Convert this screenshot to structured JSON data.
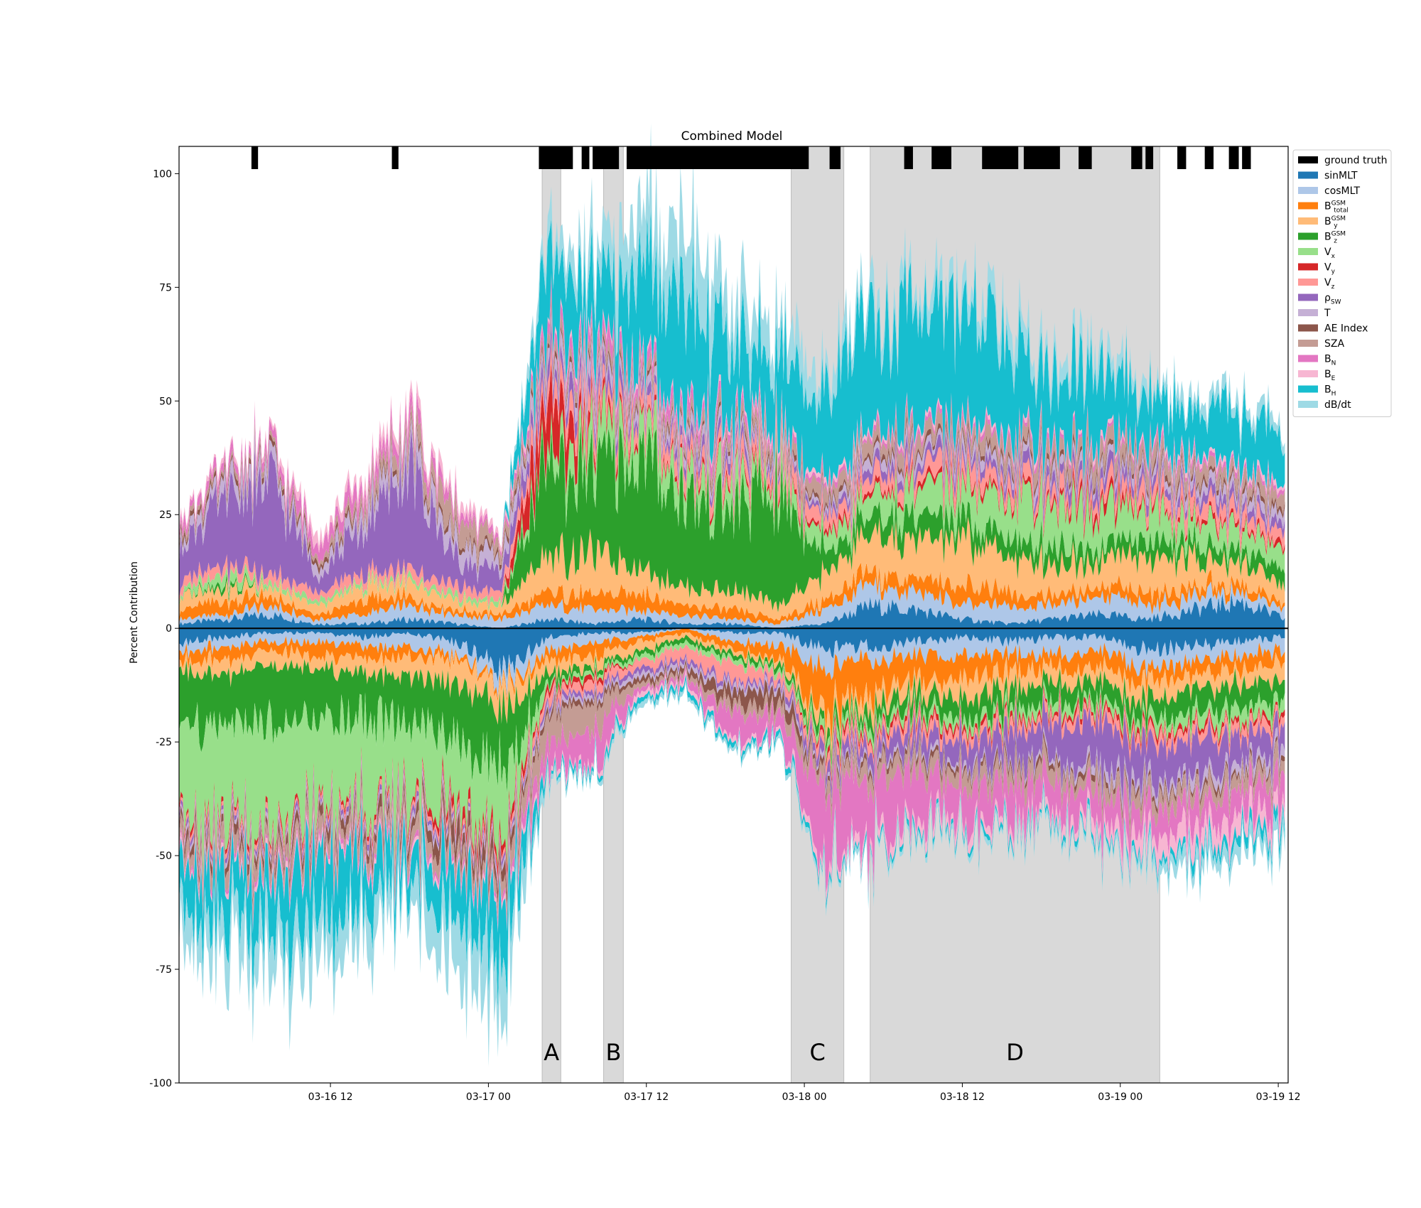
{
  "chart_data": {
    "type": "area",
    "title": "Combined Model",
    "xlabel": "",
    "ylabel": "Percent Contribution",
    "ylim": [
      -100,
      106
    ],
    "xlim": [
      "03-16 00:30",
      "03-19 12:45"
    ],
    "y_ticks": [
      -100,
      -75,
      -50,
      -25,
      0,
      25,
      50,
      75,
      100
    ],
    "x_ticks": [
      {
        "t": "2023-03-16T12:00",
        "label": "03-16 12"
      },
      {
        "t": "2023-03-17T00:00",
        "label": "03-17 00"
      },
      {
        "t": "2023-03-17T12:00",
        "label": "03-17 12"
      },
      {
        "t": "2023-03-18T00:00",
        "label": "03-18 00"
      },
      {
        "t": "2023-03-18T12:00",
        "label": "03-18 12"
      },
      {
        "t": "2023-03-19T00:00",
        "label": "03-19 00"
      },
      {
        "t": "2023-03-19T12:00",
        "label": "03-19 12"
      }
    ],
    "grid": false,
    "legend_position": "outside-right-top",
    "shaded_regions": [
      {
        "label": "A",
        "start": "2023-03-17T04:05",
        "end": "2023-03-17T05:30"
      },
      {
        "label": "B",
        "start": "2023-03-17T08:45",
        "end": "2023-03-17T10:15"
      },
      {
        "label": "C",
        "start": "2023-03-17T23:00",
        "end": "2023-03-18T03:00"
      },
      {
        "label": "D",
        "start": "2023-03-18T05:00",
        "end": "2023-03-19T03:00"
      }
    ],
    "ground_truth_events": [
      [
        "2023-03-16T06:00",
        "2023-03-16T06:30"
      ],
      [
        "2023-03-16T16:40",
        "2023-03-16T17:10"
      ],
      [
        "2023-03-17T03:50",
        "2023-03-17T06:25"
      ],
      [
        "2023-03-17T07:05",
        "2023-03-17T07:40"
      ],
      [
        "2023-03-17T07:55",
        "2023-03-17T09:55"
      ],
      [
        "2023-03-17T10:30",
        "2023-03-18T00:20"
      ],
      [
        "2023-03-18T01:55",
        "2023-03-18T02:45"
      ],
      [
        "2023-03-18T07:35",
        "2023-03-18T08:15"
      ],
      [
        "2023-03-18T09:40",
        "2023-03-18T11:10"
      ],
      [
        "2023-03-18T13:30",
        "2023-03-18T16:15"
      ],
      [
        "2023-03-18T16:40",
        "2023-03-18T19:25"
      ],
      [
        "2023-03-18T20:50",
        "2023-03-18T21:50"
      ],
      [
        "2023-03-19T00:50",
        "2023-03-19T01:40"
      ],
      [
        "2023-03-19T01:55",
        "2023-03-19T02:30"
      ],
      [
        "2023-03-19T04:20",
        "2023-03-19T05:00"
      ],
      [
        "2023-03-19T06:25",
        "2023-03-19T07:05"
      ],
      [
        "2023-03-19T08:15",
        "2023-03-19T09:00"
      ],
      [
        "2023-03-19T09:15",
        "2023-03-19T09:55"
      ]
    ],
    "x_samples": [
      "03-16 00:30",
      "03-16 04:00",
      "03-16 07:30",
      "03-16 11:00",
      "03-16 14:30",
      "03-16 18:00",
      "03-16 21:30",
      "03-17 01:00",
      "03-17 04:30",
      "03-17 08:00",
      "03-17 11:30",
      "03-17 15:00",
      "03-17 18:30",
      "03-17 22:00",
      "03-18 01:30",
      "03-18 05:00",
      "03-18 08:30",
      "03-18 12:00",
      "03-18 15:30",
      "03-18 19:00",
      "03-18 22:30",
      "03-19 02:00",
      "03-19 05:30",
      "03-19 09:00",
      "03-19 12:30"
    ],
    "series": [
      {
        "name": "sinMLT",
        "color": "#1f77b4",
        "positive": [
          1,
          2,
          3,
          1,
          1,
          2,
          1,
          0,
          2,
          1,
          2,
          1,
          1,
          0,
          1,
          5,
          4,
          2,
          1,
          2,
          3,
          2,
          4,
          6,
          2
        ],
        "negative": [
          -3,
          -2,
          -1,
          -1,
          -2,
          -1,
          -3,
          -10,
          -2,
          -1,
          -1,
          0,
          -1,
          -1,
          -5,
          -4,
          -3,
          -2,
          -3,
          -2,
          -2,
          -5,
          -4,
          -3,
          -2
        ]
      },
      {
        "name": "cosMLT",
        "color": "#aec7e8",
        "positive": [
          1,
          1,
          2,
          1,
          2,
          3,
          2,
          2,
          3,
          3,
          2,
          2,
          1,
          1,
          3,
          4,
          4,
          3,
          4,
          3,
          4,
          3,
          3,
          2,
          2
        ],
        "negative": [
          -2,
          -2,
          -2,
          -2,
          -2,
          -3,
          -3,
          -3,
          -3,
          -2,
          -1,
          0,
          -2,
          -3,
          -4,
          -3,
          -3,
          -4,
          -3,
          -4,
          -3,
          -4,
          -3,
          -3,
          -3
        ]
      },
      {
        "name": "B_total_GSM",
        "color": "#ff7f0e",
        "positive": [
          2,
          3,
          2,
          1,
          3,
          2,
          1,
          1,
          3,
          3,
          4,
          2,
          2,
          1,
          2,
          3,
          3,
          4,
          3,
          2,
          2,
          3,
          2,
          2,
          1
        ],
        "negative": [
          -2,
          -3,
          -2,
          -3,
          -3,
          -2,
          -1,
          -1,
          -2,
          -3,
          -1,
          -1,
          -2,
          -3,
          -10,
          -8,
          -6,
          -5,
          -4,
          -3,
          -4,
          -3,
          -3,
          -3,
          -3
        ]
      },
      {
        "name": "B_y_GSM",
        "color": "#ffbb78",
        "positive": [
          3,
          3,
          2,
          2,
          3,
          3,
          2,
          2,
          8,
          9,
          6,
          4,
          4,
          3,
          6,
          8,
          8,
          10,
          8,
          7,
          6,
          8,
          6,
          5,
          4
        ],
        "negative": [
          -2,
          -3,
          -3,
          -3,
          -3,
          -4,
          -5,
          -5,
          -3,
          -2,
          -2,
          -1,
          -1,
          -1,
          -3,
          -3,
          -3,
          -4,
          -4,
          -3,
          -3,
          -4,
          -3,
          -3,
          -4
        ]
      },
      {
        "name": "B_z_GSM",
        "color": "#2ca02c",
        "positive": [
          0,
          1,
          0,
          0,
          0,
          0,
          0,
          0,
          20,
          18,
          25,
          20,
          18,
          25,
          5,
          4,
          5,
          4,
          4,
          4,
          3,
          4,
          3,
          3,
          3
        ],
        "negative": [
          -12,
          -10,
          -12,
          -10,
          -10,
          -10,
          -12,
          -14,
          -2,
          -1,
          -1,
          -1,
          -1,
          -1,
          -2,
          -3,
          -3,
          -4,
          -4,
          -4,
          -4,
          -4,
          -5,
          -5,
          -5
        ]
      },
      {
        "name": "V_x",
        "color": "#98df8a",
        "positive": [
          1,
          2,
          1,
          1,
          1,
          1,
          1,
          1,
          3,
          8,
          6,
          5,
          5,
          4,
          4,
          5,
          6,
          7,
          9,
          10,
          9,
          7,
          5,
          5,
          4
        ],
        "negative": [
          -20,
          -22,
          -22,
          -20,
          -18,
          -20,
          -16,
          -14,
          -1,
          -1,
          -1,
          -1,
          -1,
          -1,
          -2,
          -2,
          -2,
          -2,
          -2,
          -2,
          -2,
          -2,
          -3,
          -3,
          -3
        ]
      },
      {
        "name": "V_y",
        "color": "#d62728",
        "positive": [
          0,
          0,
          0,
          0,
          0,
          0,
          0,
          0,
          12,
          2,
          1,
          1,
          1,
          1,
          1,
          1,
          1,
          1,
          1,
          1,
          2,
          1,
          1,
          1,
          1
        ],
        "negative": [
          -1,
          -1,
          -1,
          -1,
          -1,
          -1,
          -2,
          -2,
          -1,
          -1,
          0,
          0,
          0,
          0,
          -1,
          -1,
          -1,
          -1,
          -1,
          -1,
          -1,
          -1,
          -1,
          -1,
          -1
        ]
      },
      {
        "name": "V_z",
        "color": "#ff9896",
        "positive": [
          2,
          2,
          2,
          2,
          2,
          2,
          2,
          2,
          4,
          4,
          3,
          3,
          3,
          3,
          3,
          3,
          3,
          4,
          3,
          3,
          3,
          3,
          3,
          3,
          3
        ],
        "negative": [
          -1,
          -1,
          -1,
          -1,
          -1,
          -1,
          -1,
          -1,
          -2,
          -2,
          -2,
          -3,
          -4,
          -2,
          -2,
          -2,
          -2,
          -2,
          -2,
          -2,
          -2,
          -2,
          -2,
          -2,
          -2
        ]
      },
      {
        "name": "ρ_SW",
        "color": "#9467bd",
        "positive": [
          8,
          14,
          20,
          4,
          10,
          22,
          6,
          4,
          3,
          3,
          2,
          2,
          2,
          1,
          1,
          2,
          2,
          2,
          2,
          2,
          3,
          2,
          2,
          2,
          2
        ],
        "negative": [
          -1,
          -1,
          -1,
          -1,
          -1,
          -1,
          -1,
          -1,
          -1,
          -1,
          -1,
          -1,
          -1,
          -1,
          -2,
          -3,
          -4,
          -5,
          -6,
          -8,
          -10,
          -8,
          -8,
          -6,
          -6
        ]
      },
      {
        "name": "T",
        "color": "#c5b0d5",
        "positive": [
          2,
          3,
          3,
          2,
          3,
          4,
          4,
          3,
          3,
          3,
          2,
          2,
          2,
          1,
          1,
          2,
          2,
          2,
          2,
          2,
          2,
          2,
          2,
          2,
          2
        ],
        "negative": [
          -1,
          -1,
          -1,
          -1,
          -1,
          -1,
          -1,
          -1,
          -1,
          -1,
          -1,
          -1,
          -1,
          -1,
          -1,
          -1,
          -1,
          -1,
          -1,
          -1,
          -2,
          -2,
          -2,
          -2,
          -2
        ]
      },
      {
        "name": "AE Index",
        "color": "#8c564b",
        "positive": [
          1,
          1,
          1,
          1,
          1,
          1,
          1,
          1,
          1,
          1,
          1,
          1,
          1,
          1,
          1,
          1,
          1,
          1,
          1,
          1,
          1,
          1,
          1,
          1,
          1
        ],
        "negative": [
          -2,
          -2,
          -2,
          -2,
          -2,
          -2,
          -4,
          -3,
          -1,
          -1,
          -1,
          -1,
          -3,
          -3,
          -1,
          -1,
          -1,
          -1,
          -1,
          -1,
          -1,
          -1,
          -1,
          -1,
          -1
        ]
      },
      {
        "name": "SZA",
        "color": "#c49c94",
        "positive": [
          1,
          1,
          1,
          1,
          2,
          3,
          5,
          2,
          2,
          2,
          2,
          2,
          2,
          2,
          3,
          3,
          3,
          3,
          3,
          3,
          4,
          3,
          3,
          3,
          3
        ],
        "negative": [
          -3,
          -3,
          -3,
          -3,
          -3,
          -3,
          -3,
          -3,
          -6,
          -6,
          -1,
          -1,
          -2,
          -2,
          -3,
          -3,
          -3,
          -3,
          -3,
          -3,
          -3,
          -3,
          -3,
          -3,
          -3
        ]
      },
      {
        "name": "B_N",
        "color": "#e377c2",
        "positive": [
          2,
          2,
          2,
          3,
          3,
          3,
          2,
          1,
          2,
          3,
          2,
          3,
          2,
          1,
          1,
          1,
          1,
          1,
          1,
          1,
          1,
          1,
          1,
          1,
          1
        ],
        "negative": [
          -1,
          -1,
          -1,
          -1,
          -1,
          -1,
          -1,
          -1,
          -5,
          -8,
          -1,
          -1,
          -6,
          -4,
          -15,
          -14,
          -10,
          -8,
          -8,
          -6,
          -6,
          -6,
          -6,
          -6,
          -6
        ]
      },
      {
        "name": "B_E",
        "color": "#f7b6d2",
        "positive": [
          1,
          1,
          1,
          2,
          2,
          2,
          2,
          1,
          1,
          1,
          1,
          1,
          1,
          1,
          1,
          1,
          1,
          1,
          1,
          1,
          1,
          1,
          1,
          1,
          1
        ],
        "negative": [
          -1,
          -1,
          -1,
          -1,
          -1,
          -1,
          -1,
          -1,
          -1,
          -1,
          -1,
          -1,
          -1,
          -1,
          -2,
          -2,
          -2,
          -2,
          -2,
          -2,
          -3,
          -4,
          -5,
          -4,
          -3
        ]
      },
      {
        "name": "B_H",
        "color": "#17becf",
        "positive": [
          0,
          0,
          0,
          0,
          0,
          0,
          0,
          0,
          15,
          12,
          20,
          25,
          15,
          15,
          20,
          25,
          25,
          25,
          20,
          15,
          15,
          10,
          10,
          12,
          10
        ],
        "negative": [
          -10,
          -10,
          -12,
          -14,
          -12,
          -6,
          -10,
          -12,
          -1,
          -1,
          -1,
          -1,
          -1,
          -1,
          -1,
          -1,
          -1,
          -1,
          -1,
          -1,
          -1,
          -1,
          -2,
          -2,
          -2
        ]
      },
      {
        "name": "dB/dt",
        "color": "#9edae5",
        "positive": [
          0,
          0,
          0,
          0,
          0,
          0,
          0,
          0,
          5,
          8,
          12,
          15,
          10,
          8,
          5,
          5,
          4,
          5,
          5,
          4,
          4,
          3,
          3,
          3,
          3
        ],
        "negative": [
          -8,
          -8,
          -10,
          -8,
          -8,
          -6,
          -12,
          -12,
          -1,
          -1,
          -1,
          -1,
          -1,
          -1,
          -1,
          -1,
          -1,
          -1,
          -1,
          -1,
          -1,
          -2,
          -3,
          -3,
          -3
        ]
      }
    ],
    "legend": [
      {
        "key": "ground truth",
        "base": "ground truth",
        "sup": "",
        "sub": "",
        "color": "#000000"
      },
      {
        "key": "sinMLT",
        "base": "sinMLT",
        "sup": "",
        "sub": "",
        "color": "#1f77b4"
      },
      {
        "key": "cosMLT",
        "base": "cosMLT",
        "sup": "",
        "sub": "",
        "color": "#aec7e8"
      },
      {
        "key": "B_total_GSM",
        "base": "B",
        "sup": "GSM",
        "sub": "total",
        "color": "#ff7f0e"
      },
      {
        "key": "B_y_GSM",
        "base": "B",
        "sup": "GSM",
        "sub": "y",
        "color": "#ffbb78"
      },
      {
        "key": "B_z_GSM",
        "base": "B",
        "sup": "GSM",
        "sub": "z",
        "color": "#2ca02c"
      },
      {
        "key": "V_x",
        "base": "V",
        "sup": "",
        "sub": "x",
        "color": "#98df8a"
      },
      {
        "key": "V_y",
        "base": "V",
        "sup": "",
        "sub": "y",
        "color": "#d62728"
      },
      {
        "key": "V_z",
        "base": "V",
        "sup": "",
        "sub": "z",
        "color": "#ff9896"
      },
      {
        "key": "ρ_SW",
        "base": "ρ",
        "sup": "",
        "sub": "SW",
        "color": "#9467bd"
      },
      {
        "key": "T",
        "base": "T",
        "sup": "",
        "sub": "",
        "color": "#c5b0d5"
      },
      {
        "key": "AE Index",
        "base": "AE Index",
        "sup": "",
        "sub": "",
        "color": "#8c564b"
      },
      {
        "key": "SZA",
        "base": "SZA",
        "sup": "",
        "sub": "",
        "color": "#c49c94"
      },
      {
        "key": "B_N",
        "base": "B",
        "sup": "",
        "sub": "N",
        "color": "#e377c2"
      },
      {
        "key": "B_E",
        "base": "B",
        "sup": "",
        "sub": "E",
        "color": "#f7b6d2"
      },
      {
        "key": "B_H",
        "base": "B",
        "sup": "",
        "sub": "H",
        "color": "#17becf"
      },
      {
        "key": "dB/dt",
        "base": "dB/dt",
        "sup": "",
        "sub": "",
        "color": "#9edae5"
      }
    ]
  }
}
